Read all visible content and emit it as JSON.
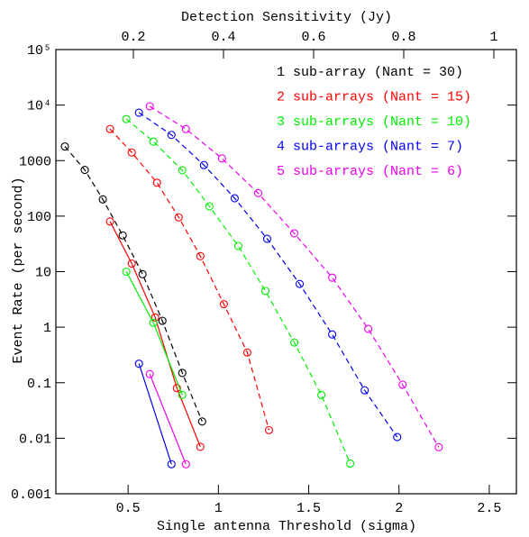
{
  "chart_data": {
    "type": "line",
    "log_y": true,
    "xlabel": "Single antenna Threshold (sigma)",
    "x2label": "Detection Sensitivity (Jy)",
    "ylabel": "Event Rate (per second)",
    "xlim": [
      0.1,
      2.65
    ],
    "xticks": [
      0.5,
      1,
      1.5,
      2,
      2.5
    ],
    "x2lim": [
      0.028,
      1.05
    ],
    "x2ticks": [
      0.2,
      0.4,
      0.6,
      0.8,
      1
    ],
    "ylim": [
      0.001,
      100000
    ],
    "yticks": [
      {
        "value": 100000,
        "label": "10⁵"
      },
      {
        "value": 10000,
        "label": "10⁴"
      },
      1000,
      100,
      10,
      1,
      0.1,
      0.01,
      0.001
    ],
    "legend": "upper right",
    "series": [
      {
        "name": "1 sub-array (Nant = 30)",
        "color": "#000000",
        "x": [
          0.15,
          0.26,
          0.36,
          0.47,
          0.58,
          0.69,
          0.8,
          0.91
        ],
        "values": [
          1800,
          680,
          200,
          45,
          9,
          1.3,
          0.15,
          0.02
        ]
      },
      {
        "name": "2 sub-arrays (Nant = 15)",
        "color": "#ff0000",
        "x": [
          0.4,
          0.52,
          0.66,
          0.78,
          0.9,
          1.03,
          1.16,
          1.28
        ],
        "values": [
          3700,
          1400,
          400,
          95,
          19,
          2.6,
          0.35,
          0.014
        ],
        "solid": {
          "x": [
            0.4,
            0.52,
            0.65,
            0.77,
            0.9
          ],
          "values": [
            80,
            14,
            1.5,
            0.08,
            0.007
          ]
        }
      },
      {
        "name": "3 sub-arrays (Nant = 10)",
        "color": "#00ee00",
        "x": [
          0.49,
          0.64,
          0.8,
          0.95,
          1.11,
          1.26,
          1.42,
          1.57,
          1.73
        ],
        "values": [
          5600,
          2200,
          670,
          150,
          29,
          4.5,
          0.53,
          0.06,
          0.0035
        ],
        "solid": {
          "x": [
            0.49,
            0.64,
            0.8
          ],
          "values": [
            10,
            1.2,
            0.06
          ]
        }
      },
      {
        "name": "4 sub-arrays (Nant = 7)",
        "color": "#0000ee",
        "x": [
          0.56,
          0.74,
          0.92,
          1.09,
          1.27,
          1.45,
          1.63,
          1.81,
          1.99
        ],
        "values": [
          7300,
          2900,
          830,
          210,
          39,
          6,
          0.74,
          0.073,
          0.0105
        ],
        "solid": {
          "x": [
            0.56,
            0.74
          ],
          "values": [
            0.22,
            0.0034
          ]
        }
      },
      {
        "name": "5 sub-arrays (Nant = 6)",
        "color": "#ee00ee",
        "x": [
          0.62,
          0.82,
          1.02,
          1.22,
          1.42,
          1.63,
          1.83,
          2.02,
          2.22
        ],
        "values": [
          9500,
          3700,
          1090,
          260,
          49,
          7.8,
          0.93,
          0.092,
          0.0069
        ],
        "solid": {
          "x": [
            0.62,
            0.82
          ],
          "values": [
            0.143,
            0.0034
          ]
        }
      }
    ]
  }
}
